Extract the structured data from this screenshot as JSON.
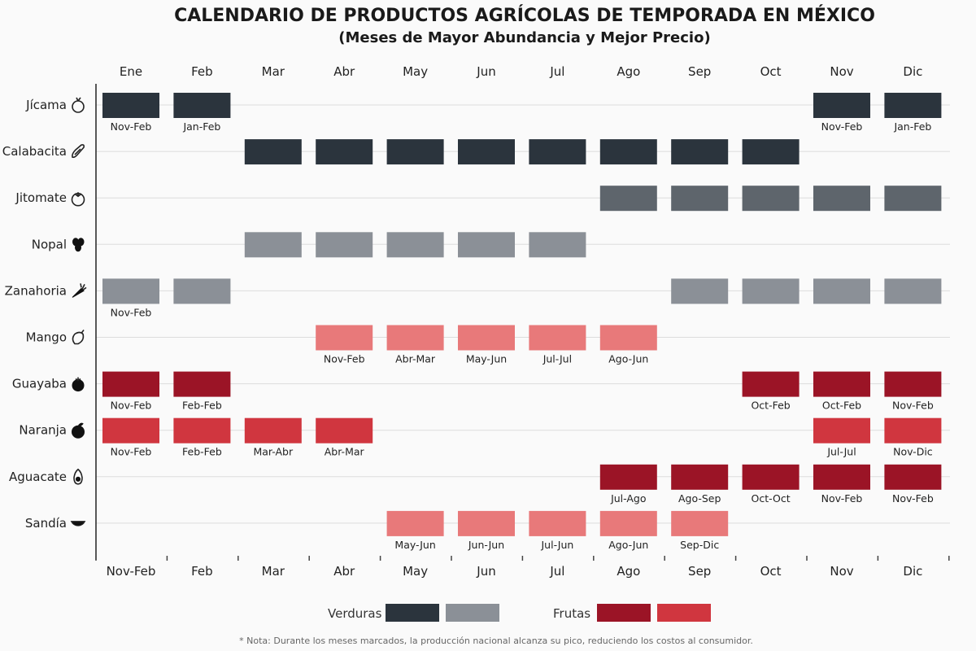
{
  "title": "CALENDARIO DE PRODUCTOS AGRÍCOLAS DE TEMPORADA EN MÉXICO",
  "subtitle": "(Meses de Mayor Abundancia y Mejor Precio)",
  "note": "* Nota: Durante los meses marcados, la producción nacional alcanza su pico, reduciendo los costos al consumidor.",
  "colors": {
    "verdura_dark": "#2b343d",
    "verdura_mid": "#5e656c",
    "verdura_light": "#8b9097",
    "fruta_dark": "#9b1426",
    "fruta_mid": "#d0363f",
    "fruta_light": "#e8797a"
  },
  "legend": {
    "verduras_label": "Verduras",
    "frutas_label": "Frutas",
    "verduras_colors": [
      "#2b343d",
      "#8b9097"
    ],
    "frutas_colors": [
      "#9b1426",
      "#d0363f"
    ]
  },
  "chart_data": {
    "type": "table",
    "top_months": [
      "Ene",
      "Feb",
      "Mar",
      "Abr",
      "May",
      "Jun",
      "Jul",
      "Ago",
      "Sep",
      "Oct",
      "Nov",
      "Dic"
    ],
    "bottom_months": [
      "Nov-Feb",
      "Feb",
      "Mar",
      "Abr",
      "May",
      "Jun",
      "Jul",
      "Ago",
      "Sep",
      "Oct",
      "Nov",
      "Dic"
    ],
    "rows": [
      {
        "name": "Jícama",
        "icon": "jicama-icon",
        "color": "#2b343d",
        "cells": [
          {
            "m": 0,
            "label": "Nov-Feb"
          },
          {
            "m": 1,
            "label": "Jan-Feb"
          },
          {
            "m": 10,
            "label": "Nov-Feb"
          },
          {
            "m": 11,
            "label": "Jan-Feb"
          }
        ]
      },
      {
        "name": "Calabacita",
        "icon": "calabacita-icon",
        "color": "#2b343d",
        "cells": [
          {
            "m": 2,
            "label": ""
          },
          {
            "m": 3,
            "label": ""
          },
          {
            "m": 4,
            "label": ""
          },
          {
            "m": 5,
            "label": ""
          },
          {
            "m": 6,
            "label": ""
          },
          {
            "m": 7,
            "label": ""
          },
          {
            "m": 8,
            "label": ""
          },
          {
            "m": 9,
            "label": ""
          }
        ]
      },
      {
        "name": "Jitomate",
        "icon": "jitomate-icon",
        "color": "#5e656c",
        "cells": [
          {
            "m": 7,
            "label": ""
          },
          {
            "m": 8,
            "label": ""
          },
          {
            "m": 9,
            "label": ""
          },
          {
            "m": 10,
            "label": ""
          },
          {
            "m": 11,
            "label": ""
          }
        ]
      },
      {
        "name": "Nopal",
        "icon": "nopal-icon",
        "color": "#8b9097",
        "cells": [
          {
            "m": 2,
            "label": ""
          },
          {
            "m": 3,
            "label": ""
          },
          {
            "m": 4,
            "label": ""
          },
          {
            "m": 5,
            "label": ""
          },
          {
            "m": 6,
            "label": ""
          }
        ]
      },
      {
        "name": "Zanahoria",
        "icon": "zanahoria-icon",
        "color": "#8b9097",
        "cells": [
          {
            "m": 0,
            "label": "Nov-Feb"
          },
          {
            "m": 1,
            "label": ""
          },
          {
            "m": 8,
            "label": ""
          },
          {
            "m": 9,
            "label": ""
          },
          {
            "m": 10,
            "label": ""
          },
          {
            "m": 11,
            "label": ""
          }
        ]
      },
      {
        "name": "Mango",
        "icon": "mango-icon",
        "color": "#e8797a",
        "cells": [
          {
            "m": 3,
            "label": "Nov-Feb"
          },
          {
            "m": 4,
            "label": "Abr-Mar"
          },
          {
            "m": 5,
            "label": "May-Jun"
          },
          {
            "m": 6,
            "label": "Jul-Jul"
          },
          {
            "m": 7,
            "label": "Ago-Jun"
          }
        ]
      },
      {
        "name": "Guayaba",
        "icon": "guayaba-icon",
        "color": "#9b1426",
        "cells": [
          {
            "m": 0,
            "label": "Nov-Feb"
          },
          {
            "m": 1,
            "label": "Feb-Feb"
          },
          {
            "m": 9,
            "label": "Oct-Feb"
          },
          {
            "m": 10,
            "label": "Oct-Feb"
          },
          {
            "m": 11,
            "label": "Nov-Feb"
          }
        ]
      },
      {
        "name": "Naranja",
        "icon": "naranja-icon",
        "color": "#d0363f",
        "cells": [
          {
            "m": 0,
            "label": "Nov-Feb"
          },
          {
            "m": 1,
            "label": "Feb-Feb"
          },
          {
            "m": 2,
            "label": "Mar-Abr"
          },
          {
            "m": 3,
            "label": "Abr-Mar"
          },
          {
            "m": 10,
            "label": "Jul-Jul"
          },
          {
            "m": 11,
            "label": "Nov-Dic"
          }
        ]
      },
      {
        "name": "Aguacate",
        "icon": "aguacate-icon",
        "color": "#9b1426",
        "cells": [
          {
            "m": 7,
            "label": "Jul-Ago"
          },
          {
            "m": 8,
            "label": "Ago-Sep"
          },
          {
            "m": 9,
            "label": "Oct-Oct"
          },
          {
            "m": 10,
            "label": "Nov-Feb"
          },
          {
            "m": 11,
            "label": "Nov-Feb"
          }
        ]
      },
      {
        "name": "Sandía",
        "icon": "sandia-icon",
        "color": "#e8797a",
        "cells": [
          {
            "m": 4,
            "label": "May-Jun"
          },
          {
            "m": 5,
            "label": "Jun-Jun"
          },
          {
            "m": 6,
            "label": "Jul-Jun"
          },
          {
            "m": 7,
            "label": "Ago-Jun"
          },
          {
            "m": 8,
            "label": "Sep-Dic"
          }
        ]
      }
    ]
  }
}
